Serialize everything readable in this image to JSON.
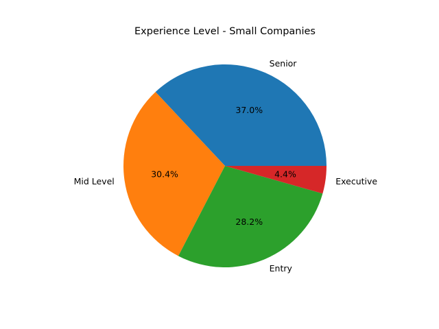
{
  "chart_data": {
    "type": "pie",
    "title": "Experience Level - Small Companies",
    "slices": [
      {
        "label": "Senior",
        "value": 37.0,
        "pct_label": "37.0%",
        "color": "#1f77b4"
      },
      {
        "label": "Mid Level",
        "value": 30.4,
        "pct_label": "30.4%",
        "color": "#ff7f0e"
      },
      {
        "label": "Entry",
        "value": 28.2,
        "pct_label": "28.2%",
        "color": "#2ca02c"
      },
      {
        "label": "Executive",
        "value": 4.4,
        "pct_label": "4.4%",
        "color": "#d62728"
      }
    ],
    "start_angle_deg": 0,
    "direction": "counterclockwise",
    "legend": "none"
  }
}
